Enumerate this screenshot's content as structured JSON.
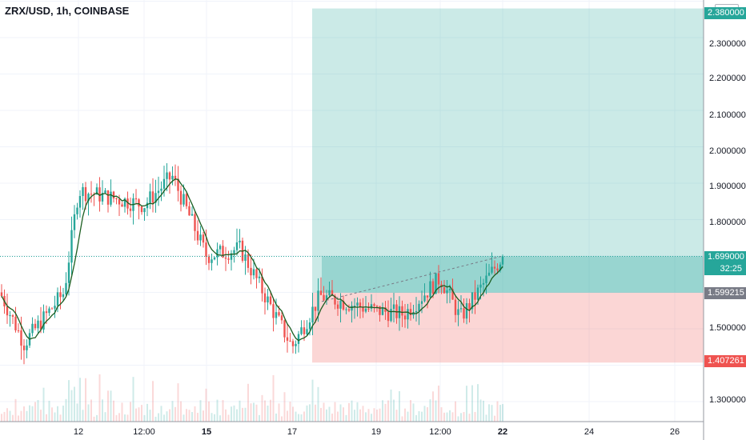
{
  "header": {
    "symbol_title": "ZRX/USD, 1h, COINBASE",
    "currency": "USD"
  },
  "price_axis": {
    "ticks": [
      "2.300000",
      "2.200000",
      "2.100000",
      "2.000000",
      "1.900000",
      "1.800000",
      "1.500000",
      "1.300000"
    ],
    "badges": {
      "target": "2.380000",
      "current_price": "1.699000",
      "countdown": "32:25",
      "entry": "1.599215",
      "stop": "1.407261"
    }
  },
  "time_axis": {
    "labels": [
      {
        "text": "12",
        "bold": false
      },
      {
        "text": "12:00",
        "bold": false
      },
      {
        "text": "15",
        "bold": true
      },
      {
        "text": "17",
        "bold": false
      },
      {
        "text": "19",
        "bold": false
      },
      {
        "text": "12:00",
        "bold": false
      },
      {
        "text": "22",
        "bold": true
      },
      {
        "text": "24",
        "bold": false
      },
      {
        "text": "26",
        "bold": false
      }
    ]
  },
  "colors": {
    "up": "#26a69a",
    "down": "#ef5350",
    "profit_zone": "#26a69a",
    "loss_zone": "#ef5350",
    "moving_average": "#1b5e20",
    "entry_badge": "#787b86"
  },
  "position_tool": {
    "type": "long",
    "entry": 1.599215,
    "stop": 1.407261,
    "target": 2.38
  },
  "chart_data": {
    "type": "candlestick",
    "symbol": "ZRX/USD",
    "interval": "1h",
    "exchange": "COINBASE",
    "ylim": [
      1.22,
      2.42
    ],
    "approx_close_path": [
      {
        "t": "start",
        "close": 1.6
      },
      {
        "t": "11",
        "close": 1.46
      },
      {
        "t": "11.8",
        "close": 1.6
      },
      {
        "t": "12",
        "close": 1.88
      },
      {
        "t": "12:00",
        "close": 1.84
      },
      {
        "t": "14 12:00",
        "close": 1.92
      },
      {
        "t": "15",
        "close": 1.7
      },
      {
        "t": "16",
        "close": 1.72
      },
      {
        "t": "17",
        "close": 1.45
      },
      {
        "t": "18",
        "close": 1.59
      },
      {
        "t": "19",
        "close": 1.55
      },
      {
        "t": "20",
        "close": 1.54
      },
      {
        "t": "12:00",
        "close": 1.64
      },
      {
        "t": "21",
        "close": 1.53
      },
      {
        "t": "22",
        "close": 1.699
      }
    ],
    "last_price": 1.699
  }
}
